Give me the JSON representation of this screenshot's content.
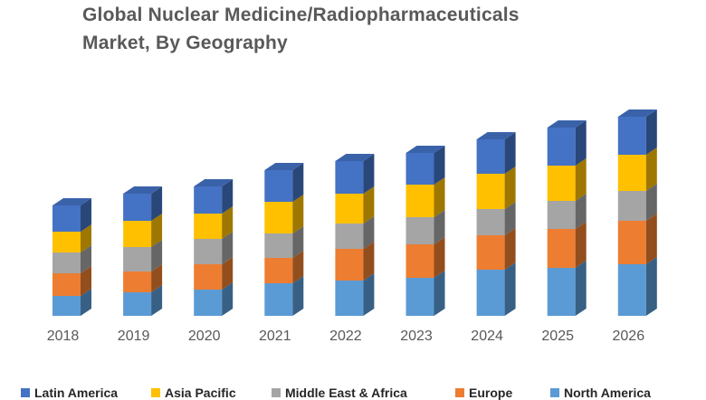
{
  "page": {
    "background": "#ffffff"
  },
  "title": {
    "line1": "Global Nuclear Medicine/Radiopharmaceuticals",
    "line2": "Market, By Geography",
    "color": "#595959"
  },
  "chart_data": {
    "type": "bar",
    "subtype": "3d-stacked-column",
    "title": "Global Nuclear Medicine/Radiopharmaceuticals Market, By Geography",
    "categories": [
      "2018",
      "2019",
      "2020",
      "2021",
      "2022",
      "2023",
      "2024",
      "2025",
      "2026"
    ],
    "stack_order": "bottom-to-top",
    "units": "relative height (no value axis shown in chart)",
    "series": [
      {
        "name": "North America",
        "color": "#5B9BD5",
        "values": [
          22,
          26,
          29,
          36,
          39,
          42,
          51,
          53,
          57
        ]
      },
      {
        "name": "Europe",
        "color": "#ED7D31",
        "values": [
          25,
          23,
          28,
          28,
          35,
          37,
          38,
          43,
          48
        ]
      },
      {
        "name": "Middle East & Africa",
        "color": "#A5A5A5",
        "values": [
          23,
          27,
          28,
          27,
          28,
          30,
          29,
          31,
          33
        ]
      },
      {
        "name": "Asia Pacific",
        "color": "#FFC000",
        "values": [
          23,
          29,
          28,
          35,
          33,
          36,
          39,
          39,
          40
        ]
      },
      {
        "name": "Latin America",
        "color": "#4472C4",
        "values": [
          29,
          30,
          30,
          35,
          36,
          35,
          38,
          42,
          42
        ]
      }
    ],
    "totals": [
      122,
      135,
      143,
      161,
      171,
      180,
      195,
      208,
      220
    ],
    "value_axis_visible": false,
    "grid": false,
    "legend_position": "bottom"
  },
  "legend": {
    "items": [
      {
        "label": "Latin America",
        "color": "#4472C4"
      },
      {
        "label": "Asia Pacific",
        "color": "#FFC000"
      },
      {
        "label": "Middle East & Africa",
        "color": "#A5A5A5"
      },
      {
        "label": "Europe",
        "color": "#ED7D31"
      },
      {
        "label": "North America",
        "color": "#5B9BD5"
      }
    ]
  }
}
